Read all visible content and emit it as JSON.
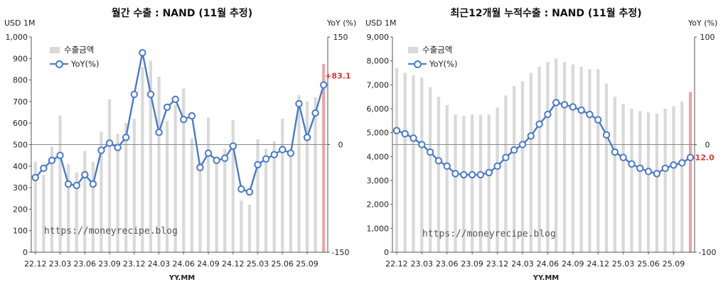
{
  "charts": [
    {
      "title": "월간 수출 : NAND (11월 추정)",
      "left_unit": "USD 1M",
      "right_unit": "YoY (%)",
      "xlabel": "YY.MM",
      "watermark": "https://moneyrecipe.blog"
    },
    {
      "title": "최근12개월 누적수출 : NAND (11월 추정)",
      "left_unit": "USD 1M",
      "right_unit": "YoY (%)",
      "xlabel": "YY.MM",
      "watermark": "https://moneyrecipe.blog"
    }
  ],
  "chart_data": [
    {
      "type": "bar",
      "title": "월간 수출 : NAND (11월 추정)",
      "xlabel": "YY.MM",
      "ylabel": "USD 1M",
      "y2label": "YoY (%)",
      "categories": [
        "22.12",
        "23.01",
        "23.02",
        "23.03",
        "23.04",
        "23.05",
        "23.06",
        "23.07",
        "23.08",
        "23.09",
        "23.10",
        "23.11",
        "23.12",
        "24.01",
        "24.02",
        "24.03",
        "24.04",
        "24.05",
        "24.06",
        "24.07",
        "24.08",
        "24.09",
        "24.10",
        "24.11",
        "24.12",
        "25.01",
        "25.02",
        "25.03",
        "25.04",
        "25.05",
        "25.06",
        "25.07",
        "25.08",
        "25.09",
        "25.10",
        "25.11"
      ],
      "x_tick_labels": [
        "22.12",
        "23.03",
        "23.06",
        "23.09",
        "23.12",
        "24.03",
        "24.06",
        "24.09",
        "24.12",
        "25.03",
        "25.06",
        "25.09"
      ],
      "ylim": [
        0,
        1000
      ],
      "y_ticks": [
        "0",
        "100",
        "200",
        "300",
        "400",
        "500",
        "600",
        "700",
        "800",
        "900",
        "1,000"
      ],
      "y2lim": [
        -150,
        150
      ],
      "y2_ticks": [
        "-150",
        "0",
        "150"
      ],
      "series": [
        {
          "name": "수출금액",
          "kind": "bar",
          "values": [
            420,
            360,
            490,
            635,
            410,
            370,
            470,
            420,
            560,
            710,
            550,
            600,
            620,
            860,
            890,
            815,
            610,
            685,
            760,
            530,
            420,
            625,
            430,
            480,
            615,
            240,
            220,
            525,
            480,
            515,
            620,
            480,
            730,
            700,
            720,
            875
          ],
          "highlight_last": true
        },
        {
          "name": "YoY(%)",
          "kind": "line",
          "axis": "right",
          "values": [
            -46,
            -33,
            -22,
            -15,
            -55,
            -57,
            -42,
            -55,
            -8,
            2,
            -4,
            10,
            70,
            128,
            70,
            17,
            52,
            63,
            35,
            40,
            -32,
            -12,
            -22,
            -19,
            -2,
            -62,
            -66,
            -28,
            -20,
            -14,
            -7,
            -12,
            57,
            10,
            44,
            83.1
          ]
        }
      ],
      "data_labels": [
        {
          "series": "YoY(%)",
          "index": 35,
          "text": "+83.1"
        }
      ],
      "reference_line": 0,
      "legend": "top-left",
      "grid": false
    },
    {
      "type": "bar",
      "title": "최근12개월 누적수출 : NAND (11월 추정)",
      "xlabel": "YY.MM",
      "ylabel": "USD 1M",
      "y2label": "YoY (%)",
      "categories": [
        "22.12",
        "23.01",
        "23.02",
        "23.03",
        "23.04",
        "23.05",
        "23.06",
        "23.07",
        "23.08",
        "23.09",
        "23.10",
        "23.11",
        "23.12",
        "24.01",
        "24.02",
        "24.03",
        "24.04",
        "24.05",
        "24.06",
        "24.07",
        "24.08",
        "24.09",
        "24.10",
        "24.11",
        "24.12",
        "25.01",
        "25.02",
        "25.03",
        "25.04",
        "25.05",
        "25.06",
        "25.07",
        "25.08",
        "25.09",
        "25.10",
        "25.11"
      ],
      "x_tick_labels": [
        "22.12",
        "23.03",
        "23.06",
        "23.09",
        "23.12",
        "24.03",
        "24.06",
        "24.09",
        "24.12",
        "25.03",
        "25.06",
        "25.09"
      ],
      "ylim": [
        0,
        9000
      ],
      "y_ticks": [
        "0",
        "1,000",
        "2,000",
        "3,000",
        "4,000",
        "5,000",
        "6,000",
        "7,000",
        "8,000",
        "9,000"
      ],
      "y2lim": [
        -100,
        100
      ],
      "y2_ticks": [
        "-100",
        "0",
        "100"
      ],
      "series": [
        {
          "name": "수출금액",
          "kind": "bar",
          "values": [
            7700,
            7500,
            7400,
            7300,
            6900,
            6500,
            6150,
            5750,
            5700,
            5750,
            5750,
            5750,
            6050,
            6550,
            6950,
            7150,
            7500,
            7750,
            7950,
            8100,
            7950,
            7850,
            7750,
            7650,
            7650,
            7050,
            6500,
            6200,
            6000,
            5900,
            5850,
            5800,
            6000,
            6100,
            6300,
            6700
          ],
          "highlight_last": true
        },
        {
          "name": "YoY(%)",
          "kind": "line",
          "axis": "right",
          "values": [
            13,
            10,
            6,
            0,
            -7,
            -15,
            -20,
            -27,
            -28,
            -28,
            -28,
            -26,
            -20,
            -12,
            -5,
            0,
            8,
            19,
            28,
            39,
            37,
            35,
            32,
            28,
            23,
            9,
            -7,
            -12,
            -18,
            -22,
            -25,
            -27,
            -22,
            -19,
            -17,
            -12.0
          ]
        }
      ],
      "data_labels": [
        {
          "series": "YoY(%)",
          "index": 35,
          "text": "-12.0"
        }
      ],
      "reference_line": 0,
      "legend": "top-left",
      "grid": false
    }
  ]
}
